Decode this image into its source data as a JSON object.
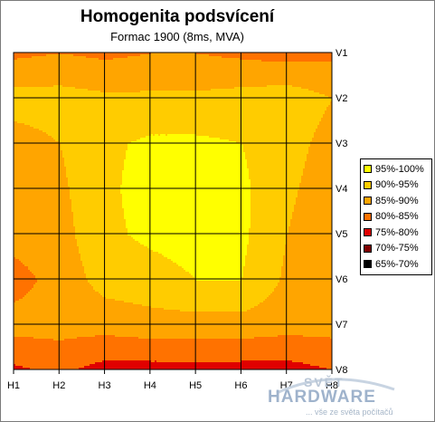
{
  "chart_data": {
    "type": "heatmap",
    "title": "Homogenita podsvícení",
    "subtitle": "Formac 1900 (8ms, MVA)",
    "x_labels": [
      "H1",
      "H2",
      "H3",
      "H4",
      "H5",
      "H6",
      "H7",
      "H8"
    ],
    "y_labels": [
      "V1",
      "V2",
      "V3",
      "V4",
      "V5",
      "V6",
      "V7",
      "V8"
    ],
    "unit": "%",
    "grid": true,
    "legend_position": "right",
    "legend": [
      {
        "label": "95%-100%",
        "color": "#ffff00"
      },
      {
        "label": "90%-95%",
        "color": "#ffcc00"
      },
      {
        "label": "85%-90%",
        "color": "#ffa500"
      },
      {
        "label": "80%-85%",
        "color": "#ff7200"
      },
      {
        "label": "75%-80%",
        "color": "#e00000"
      },
      {
        "label": "70%-75%",
        "color": "#800000"
      },
      {
        "label": "65%-70%",
        "color": "#000000"
      }
    ],
    "values": [
      [
        84,
        85,
        84,
        85,
        85,
        84,
        83,
        84
      ],
      [
        92,
        92,
        91,
        91,
        91,
        92,
        93,
        90
      ],
      [
        88,
        90,
        94,
        96,
        96,
        95,
        92,
        88
      ],
      [
        88,
        89,
        94,
        97,
        98,
        96,
        91,
        87
      ],
      [
        87,
        88,
        94,
        96,
        97,
        96,
        90,
        86
      ],
      [
        83,
        87,
        92,
        93,
        95,
        95,
        89,
        86
      ],
      [
        87,
        87,
        87,
        88,
        88,
        88,
        87,
        87
      ],
      [
        79,
        81,
        78,
        78,
        78,
        78,
        78,
        80
      ]
    ]
  },
  "watermark": {
    "top": "SVĚT",
    "main": "HARDWARE",
    "tagline": "... vše ze světa počítačů"
  }
}
